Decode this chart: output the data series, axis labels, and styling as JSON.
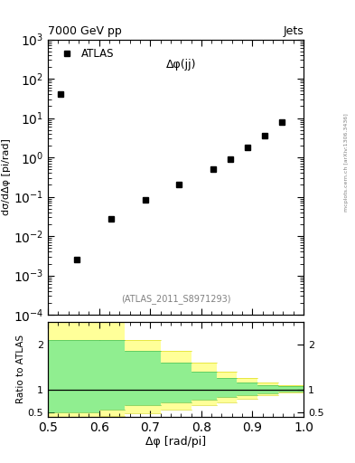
{
  "title_left": "7000 GeV pp",
  "title_right": "Jets",
  "annotation": "Δφ(jj)",
  "watermark": "(ATLAS_2011_S8971293)",
  "ylabel_main": "1/σ;dσ/dΔφ [pi/rad]",
  "ylabel_ratio": "Ratio to ATLAS",
  "xlabel": "Δφ [rad/pi]",
  "legend_label": "ATLAS",
  "data_x": [
    0.524,
    0.557,
    0.624,
    0.69,
    0.757,
    0.824,
    0.857,
    0.89,
    0.924,
    0.957
  ],
  "data_y": [
    40.0,
    0.0025,
    0.028,
    0.085,
    0.2,
    0.5,
    0.9,
    1.8,
    3.5,
    8.0
  ],
  "xlim": [
    0.5,
    1.0
  ],
  "ylim_main": [
    0.0001,
    1000.0
  ],
  "ylim_ratio": [
    0.4,
    2.5
  ],
  "ratio_bins": [
    0.5,
    0.6,
    0.65,
    0.72,
    0.78,
    0.83,
    0.87,
    0.91,
    0.95,
    1.0
  ],
  "green_upper": [
    2.1,
    2.1,
    1.85,
    1.6,
    1.4,
    1.25,
    1.15,
    1.1,
    1.07
  ],
  "green_lower": [
    0.5,
    0.55,
    0.65,
    0.72,
    0.78,
    0.83,
    0.88,
    0.92,
    0.95
  ],
  "yellow_upper": [
    2.5,
    2.5,
    2.1,
    1.85,
    1.6,
    1.4,
    1.25,
    1.15,
    1.1
  ],
  "yellow_lower": [
    0.4,
    0.42,
    0.48,
    0.55,
    0.65,
    0.72,
    0.8,
    0.88,
    0.93
  ],
  "color_green": "#90ee90",
  "color_yellow": "#ffff99",
  "marker_color": "#000000",
  "ratio_line_y": 1.0,
  "right_axis_label": "[arXiv:1306.3436]",
  "right_axis_label2": "mcplots.cern.ch"
}
